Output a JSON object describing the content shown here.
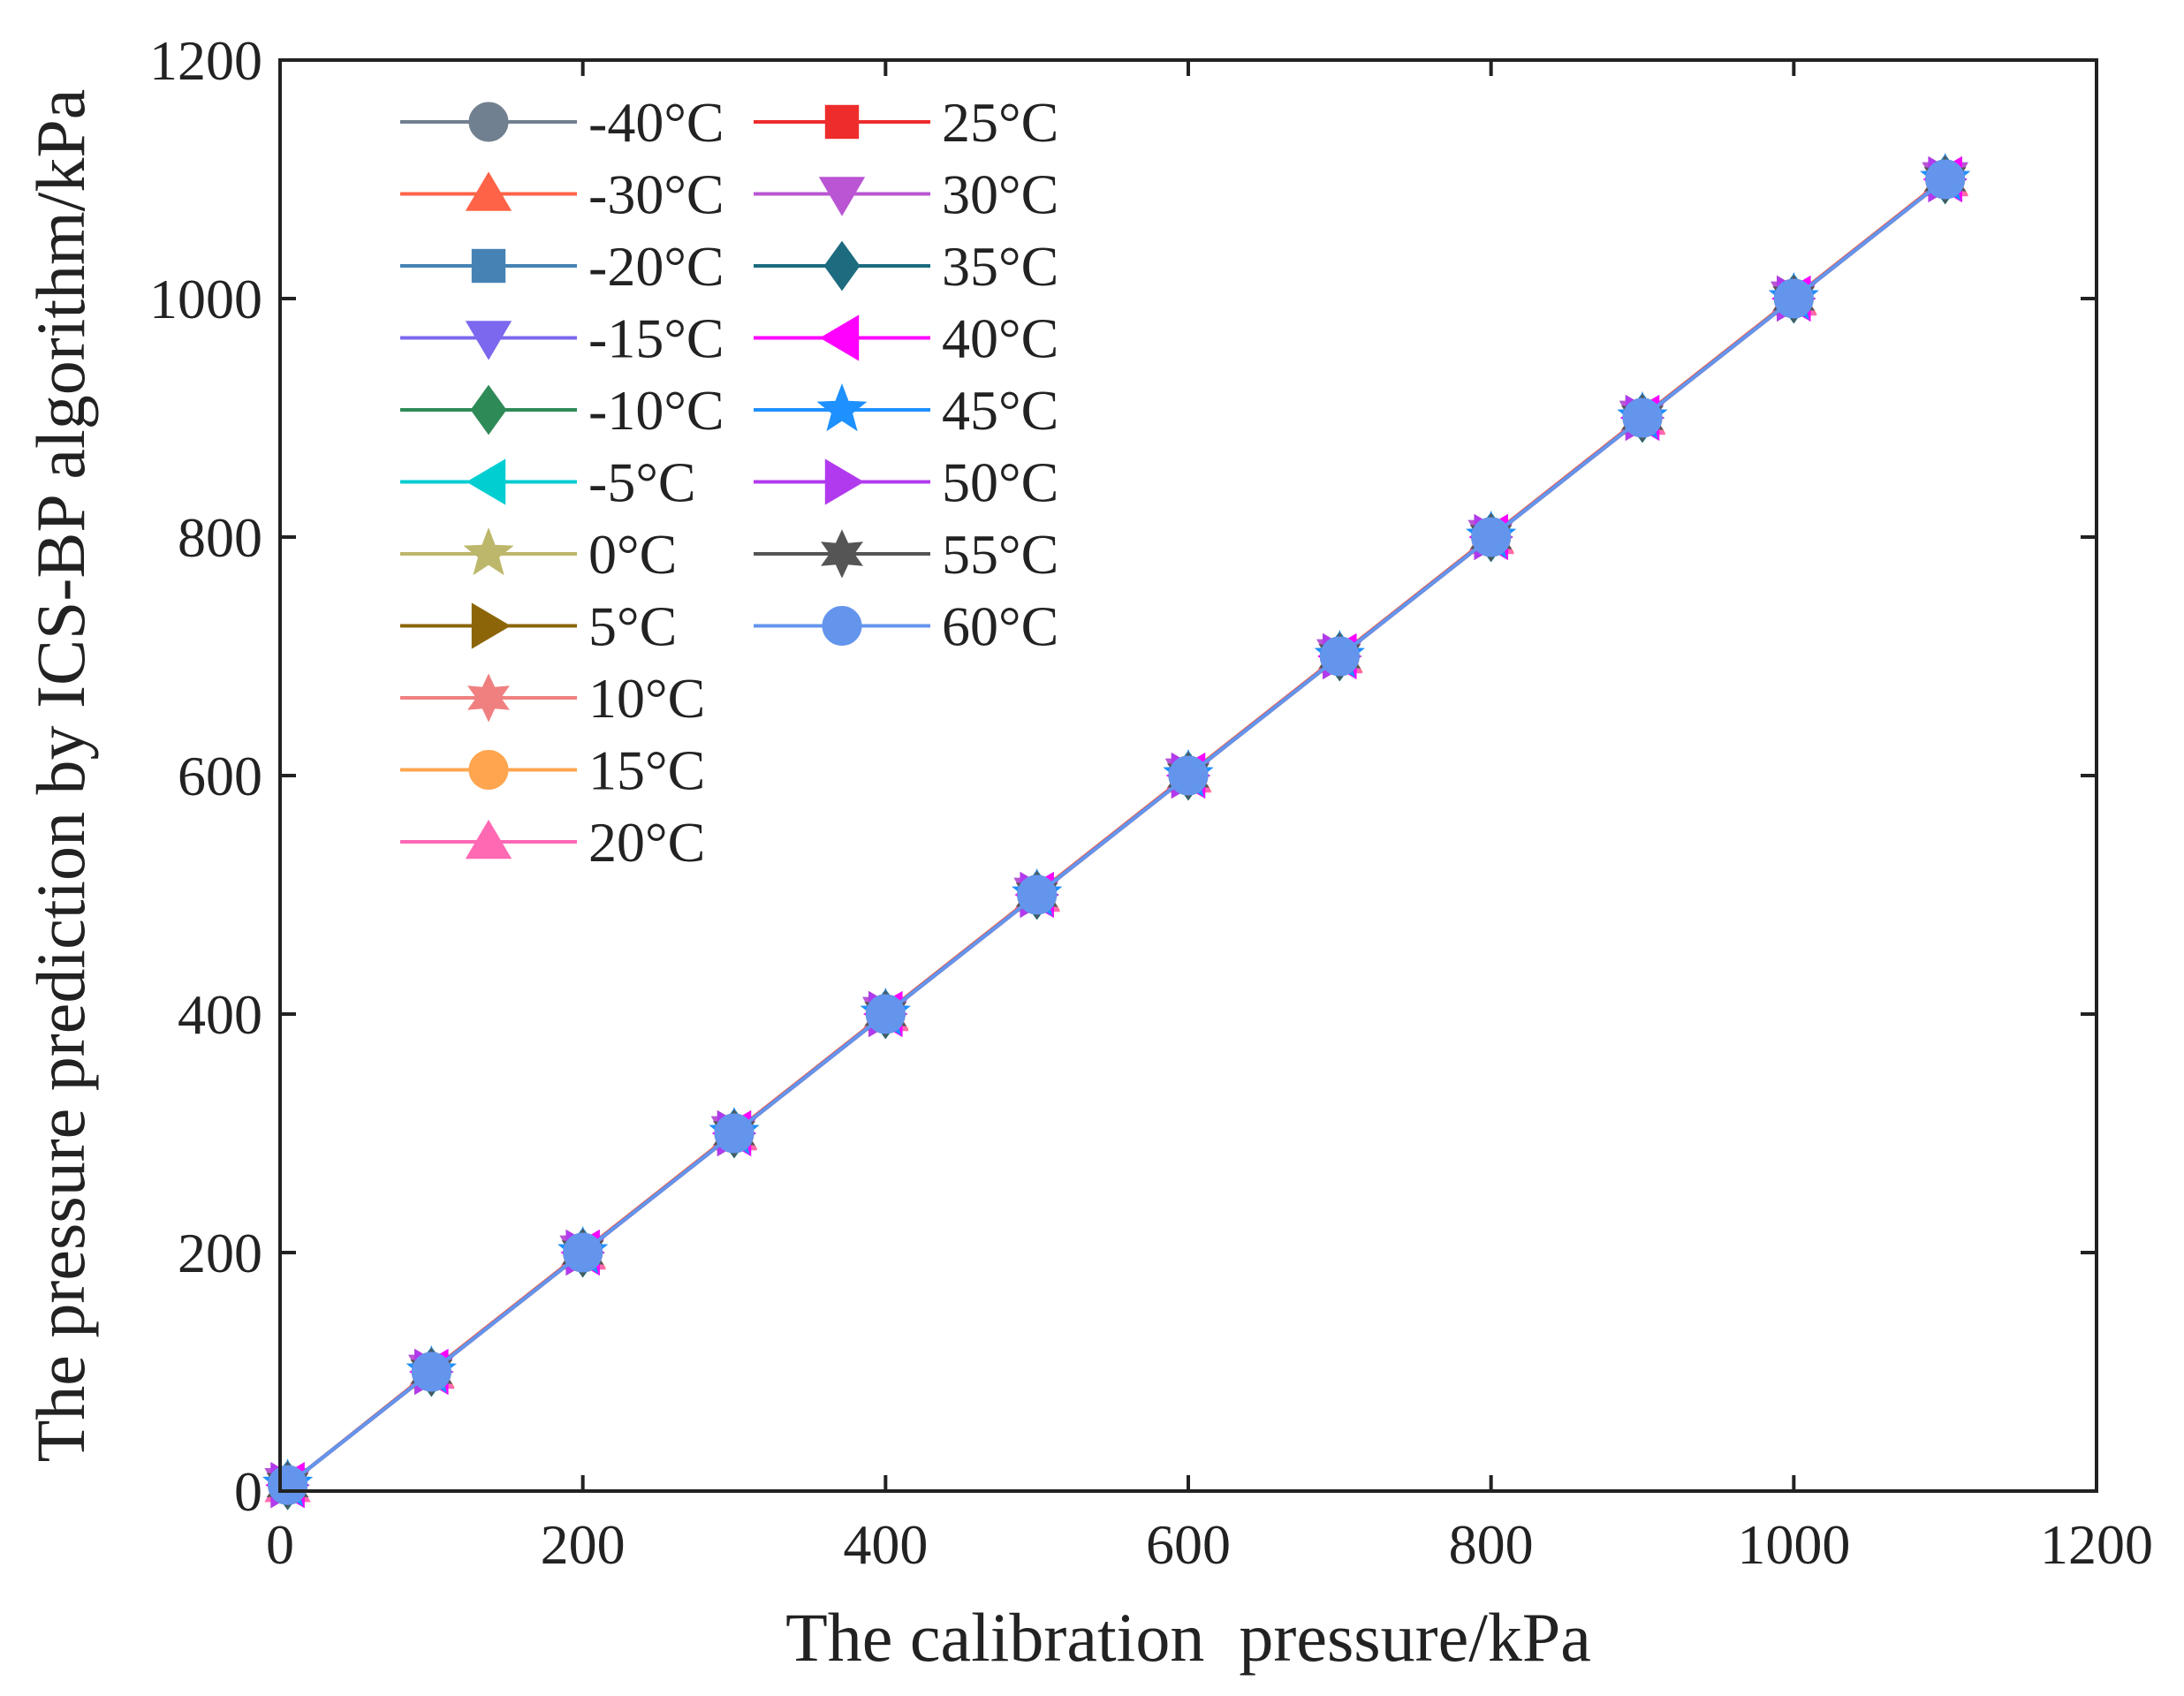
{
  "chart_data": {
    "type": "line",
    "xlabel": "The calibration  pressure/kPa",
    "ylabel": "The pressure prediction by ICS-BP algorithm/kPa",
    "xlim": [
      0,
      1200
    ],
    "ylim": [
      0,
      1200
    ],
    "xticks": [
      "0",
      "200",
      "400",
      "600",
      "800",
      "1000",
      "1200"
    ],
    "yticks": [
      "0",
      "200",
      "400",
      "600",
      "800",
      "1000",
      "1200"
    ],
    "grid": false,
    "legend_position": "top-left",
    "x": [
      5,
      100,
      200,
      300,
      400,
      500,
      600,
      700,
      800,
      900,
      1000,
      1100
    ],
    "series": [
      {
        "name": "-40°C",
        "color": "#708090",
        "marker": "circle",
        "values": [
          5,
          100,
          200,
          300,
          400,
          500,
          600,
          700,
          800,
          900,
          1000,
          1100
        ]
      },
      {
        "name": "-30°C",
        "color": "#ff6347",
        "marker": "triangle-up",
        "values": [
          5,
          101,
          201,
          301,
          401,
          501,
          601,
          701,
          801,
          901,
          1001,
          1101
        ]
      },
      {
        "name": "-20°C",
        "color": "#4682b4",
        "marker": "square",
        "values": [
          5,
          100,
          200,
          300,
          400,
          500,
          600,
          700,
          800,
          900,
          1000,
          1100
        ]
      },
      {
        "name": "-15°C",
        "color": "#7b68ee",
        "marker": "triangle-down",
        "values": [
          5,
          100,
          200,
          300,
          400,
          500,
          600,
          700,
          800,
          900,
          1000,
          1100
        ]
      },
      {
        "name": "-10°C",
        "color": "#2e8b57",
        "marker": "diamond",
        "values": [
          5,
          100,
          200,
          300,
          400,
          500,
          600,
          700,
          800,
          900,
          1000,
          1100
        ]
      },
      {
        "name": "-5°C",
        "color": "#00ced1",
        "marker": "triangle-left",
        "values": [
          5,
          100,
          200,
          300,
          400,
          500,
          600,
          700,
          800,
          900,
          1000,
          1100
        ]
      },
      {
        "name": "0°C",
        "color": "#bdb76b",
        "marker": "star5",
        "values": [
          5,
          100,
          200,
          300,
          400,
          500,
          600,
          700,
          800,
          900,
          1000,
          1100
        ]
      },
      {
        "name": "5°C",
        "color": "#8b6508",
        "marker": "triangle-right",
        "values": [
          5,
          100,
          200,
          300,
          400,
          500,
          600,
          700,
          800,
          900,
          1000,
          1100
        ]
      },
      {
        "name": "10°C",
        "color": "#f08080",
        "marker": "star6",
        "values": [
          5,
          100,
          200,
          300,
          400,
          500,
          600,
          700,
          800,
          900,
          1000,
          1100
        ]
      },
      {
        "name": "15°C",
        "color": "#ffa54f",
        "marker": "circle",
        "values": [
          5,
          100,
          200,
          300,
          400,
          500,
          600,
          700,
          800,
          900,
          1000,
          1100
        ]
      },
      {
        "name": "20°C",
        "color": "#ff69b4",
        "marker": "triangle-up",
        "values": [
          5,
          100,
          200,
          300,
          400,
          500,
          600,
          700,
          800,
          900,
          1000,
          1100
        ]
      },
      {
        "name": "25°C",
        "color": "#ee2c2c",
        "marker": "square",
        "values": [
          5,
          100,
          200,
          300,
          400,
          500,
          600,
          700,
          800,
          900,
          1000,
          1100
        ]
      },
      {
        "name": "30°C",
        "color": "#ba55d3",
        "marker": "triangle-down",
        "values": [
          5,
          100,
          200,
          300,
          400,
          500,
          600,
          700,
          800,
          900,
          1000,
          1100
        ]
      },
      {
        "name": "35°C",
        "color": "#1c6b7f",
        "marker": "diamond",
        "values": [
          5,
          100,
          200,
          300,
          400,
          500,
          600,
          700,
          800,
          900,
          1000,
          1100
        ]
      },
      {
        "name": "40°C",
        "color": "#ff00ff",
        "marker": "triangle-left",
        "values": [
          5,
          100,
          200,
          300,
          400,
          500,
          600,
          700,
          800,
          900,
          1000,
          1100
        ]
      },
      {
        "name": "45°C",
        "color": "#1e90ff",
        "marker": "star5",
        "values": [
          5,
          100,
          200,
          300,
          400,
          500,
          600,
          700,
          800,
          900,
          1000,
          1100
        ]
      },
      {
        "name": "50°C",
        "color": "#b23aee",
        "marker": "triangle-right",
        "values": [
          5,
          100,
          200,
          300,
          400,
          500,
          600,
          700,
          800,
          900,
          1000,
          1100
        ]
      },
      {
        "name": "55°C",
        "color": "#555555",
        "marker": "star6",
        "values": [
          5,
          100,
          200,
          300,
          400,
          500,
          600,
          700,
          800,
          900,
          1000,
          1100
        ]
      },
      {
        "name": "60°C",
        "color": "#6495ed",
        "marker": "circle",
        "values": [
          5,
          100,
          200,
          300,
          400,
          500,
          600,
          700,
          800,
          900,
          1000,
          1100
        ]
      }
    ]
  }
}
